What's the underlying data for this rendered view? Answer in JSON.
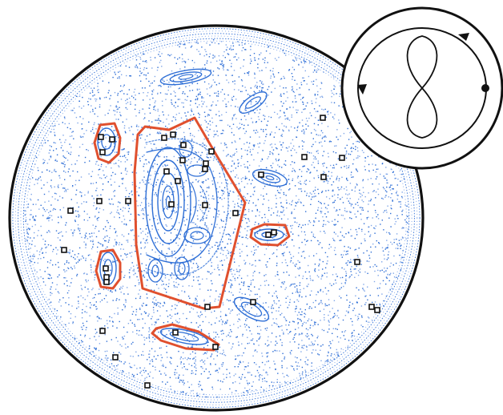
{
  "colors": {
    "background": "#ffffff",
    "boundary": "#111111",
    "orbit_blue": "#2f6fd6",
    "orbit_light": "#7fa6e8",
    "highlight_red": "#e0502e",
    "marker_black": "#111111"
  },
  "icons": {
    "marker": "square-marker-icon",
    "inset": "billiard-trajectory-inset-icon",
    "direction_arrow": "direction-arrow-icon",
    "start_point": "filled-dot-icon"
  }
}
